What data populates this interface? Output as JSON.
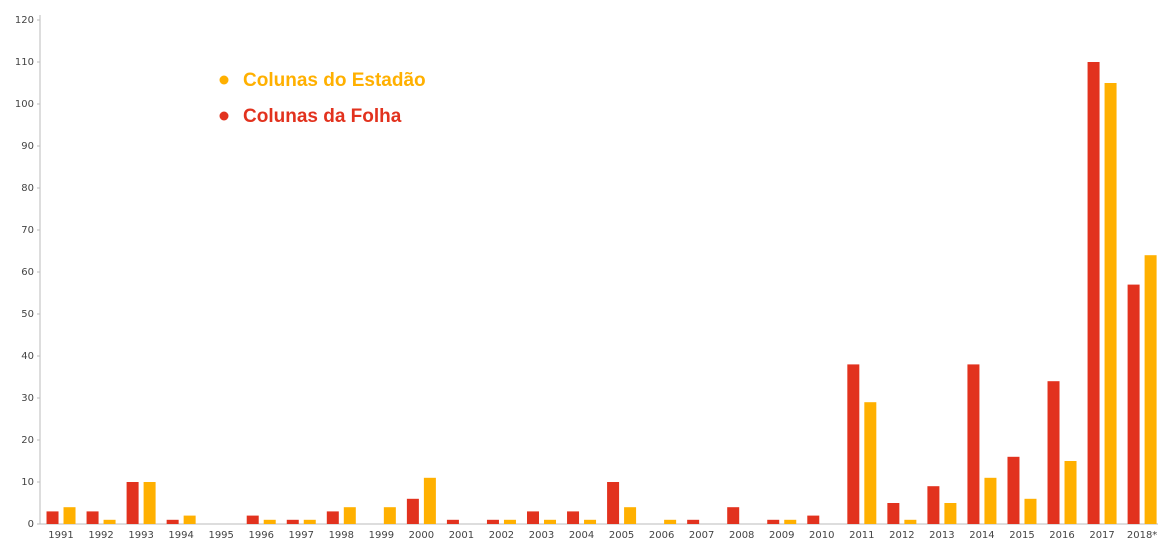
{
  "chart_data": {
    "type": "bar",
    "categories": [
      "1991",
      "1992",
      "1993",
      "1994",
      "1995",
      "1996",
      "1997",
      "1998",
      "1999",
      "2000",
      "2001",
      "2002",
      "2003",
      "2004",
      "2005",
      "2006",
      "2007",
      "2008",
      "2009",
      "2010",
      "2011",
      "2012",
      "2013",
      "2014",
      "2015",
      "2016",
      "2017",
      "2018*"
    ],
    "series": [
      {
        "name": "Colunas do Estadão",
        "color": "#ffb000",
        "values": [
          4,
          1,
          10,
          2,
          0,
          1,
          1,
          4,
          4,
          11,
          0,
          1,
          1,
          1,
          4,
          1,
          0,
          0,
          1,
          0,
          29,
          1,
          5,
          11,
          6,
          15,
          105,
          64
        ]
      },
      {
        "name": "Colunas da Folha",
        "color": "#e2321e",
        "values": [
          3,
          3,
          10,
          1,
          0,
          2,
          1,
          3,
          0,
          6,
          1,
          1,
          3,
          3,
          10,
          0,
          1,
          4,
          1,
          2,
          38,
          5,
          9,
          38,
          16,
          34,
          110,
          57
        ]
      }
    ],
    "ylim": [
      0,
      120
    ],
    "yticks": [
      0,
      10,
      20,
      30,
      40,
      50,
      60,
      70,
      80,
      90,
      100,
      110,
      120
    ],
    "grid": false,
    "legend": "top-left"
  }
}
